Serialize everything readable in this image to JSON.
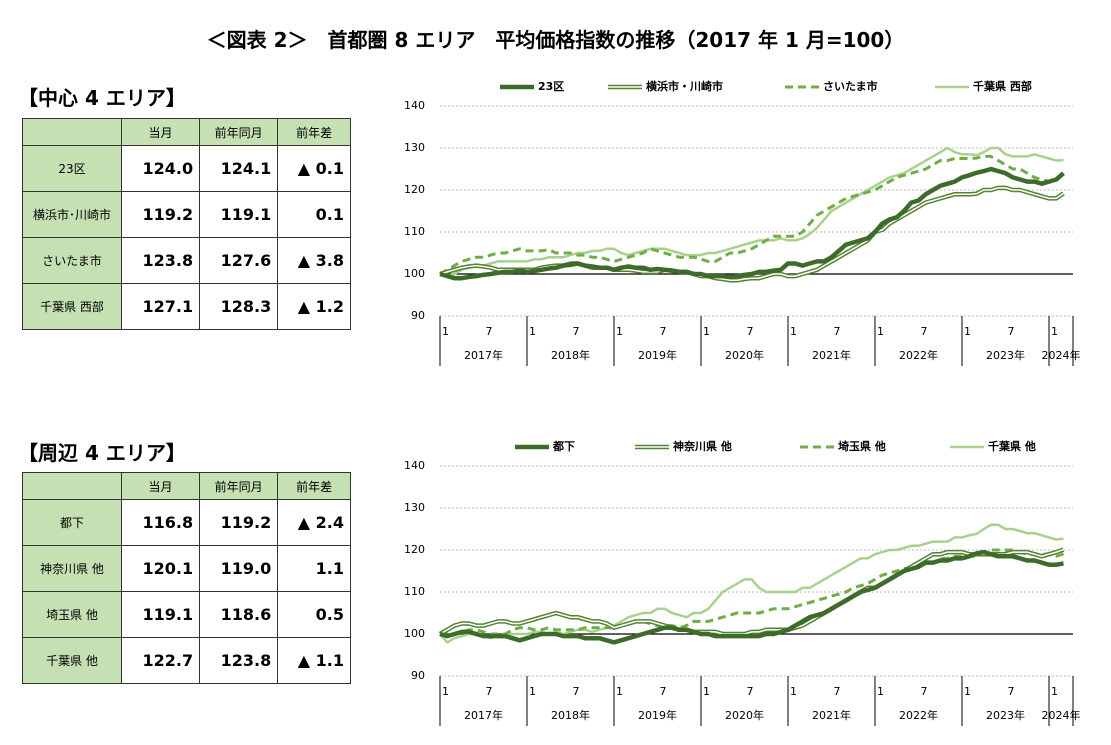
{
  "title": "＜図表 2＞　首都圏 8 エリア　平均価格指数の推移（2017 年 1 月=100）",
  "sections": [
    {
      "heading": "【中心 4 エリア】",
      "table": {
        "header": [
          "当月",
          "前年同月",
          "前年差"
        ],
        "rows": [
          [
            "23区",
            "124.0",
            "124.1",
            "▲ 0.1"
          ],
          [
            "横浜市･川崎市",
            "119.2",
            "119.1",
            "0.1"
          ],
          [
            "さいたま市",
            "123.8",
            "127.6",
            "▲ 3.8"
          ],
          [
            "千葉県 西部",
            "127.1",
            "128.3",
            "▲ 1.2"
          ]
        ]
      }
    },
    {
      "heading": "【周辺 4 エリア】",
      "table": {
        "header": [
          "当月",
          "前年同月",
          "前年差"
        ],
        "rows": [
          [
            "都下",
            "116.8",
            "119.2",
            "▲ 2.4"
          ],
          [
            "神奈川県 他",
            "120.1",
            "119.0",
            "1.1"
          ],
          [
            "埼玉県 他",
            "119.1",
            "118.6",
            "0.5"
          ],
          [
            "千葉県 他",
            "122.7",
            "123.8",
            "▲ 1.1"
          ]
        ]
      }
    }
  ],
  "chart_data": [
    {
      "type": "line",
      "ylim": [
        90,
        140
      ],
      "yticks": [
        90,
        100,
        110,
        120,
        130,
        140
      ],
      "grid": true,
      "reference_line": 100,
      "categories": [
        "1",
        null,
        null,
        null,
        null,
        null,
        "7",
        null,
        null,
        null,
        null,
        null,
        "1",
        null,
        null,
        null,
        null,
        null,
        "7",
        null,
        null,
        null,
        null,
        null,
        "1",
        null,
        null,
        null,
        null,
        null,
        "7",
        null,
        null,
        null,
        null,
        null,
        "1",
        null,
        null,
        null,
        null,
        null,
        "7",
        null,
        null,
        null,
        null,
        null,
        "1",
        null,
        null,
        null,
        null,
        null,
        "7",
        null,
        null,
        null,
        null,
        null,
        "1",
        null,
        null,
        null,
        null,
        null,
        "7",
        null,
        null,
        null,
        null,
        null,
        "1",
        null,
        null,
        null,
        null,
        null,
        "7",
        null,
        null,
        null,
        null,
        null,
        "1",
        null,
        null
      ],
      "year_labels": [
        "2017年",
        "2018年",
        "2019年",
        "2020年",
        "2021年",
        "2022年",
        "2023年",
        "2024年"
      ],
      "series": [
        {
          "name": "23区",
          "color": "#3e6b2a",
          "line_style": "solid",
          "width": 4.5,
          "values": [
            100,
            99.5,
            99,
            99,
            99.3,
            99.5,
            99.8,
            100,
            100.3,
            100.5,
            100.5,
            100.8,
            100.5,
            100.7,
            101,
            101.3,
            101.5,
            102,
            102.2,
            102.5,
            102,
            101.8,
            101.5,
            101.5,
            101,
            101.5,
            101.8,
            101.5,
            101.5,
            101,
            101.2,
            101,
            100.8,
            100.5,
            100.5,
            100,
            100,
            99.5,
            99.5,
            99.5,
            99.3,
            99.5,
            99.8,
            100,
            100.5,
            100.5,
            100.8,
            101,
            102.5,
            102.5,
            102,
            102.5,
            103,
            103,
            104,
            105.5,
            107,
            107.5,
            108,
            108.5,
            110,
            112,
            113,
            113.5,
            115,
            117,
            117.5,
            119,
            120,
            121,
            121.5,
            122,
            123,
            123.5,
            124.1,
            124.5,
            125,
            124.5,
            124,
            123,
            122.5,
            122,
            122,
            121.5,
            122,
            122.5,
            124
          ]
        },
        {
          "name": "横浜市・川崎市",
          "color": "#548235",
          "line_style": "double",
          "width": 4.5,
          "values": [
            100,
            100.5,
            101,
            101.5,
            101.8,
            102,
            101.8,
            101.5,
            101,
            101,
            101,
            101,
            101,
            101,
            101.5,
            101.8,
            102,
            102,
            102.5,
            102.5,
            102,
            101.5,
            101.5,
            101.5,
            101,
            101,
            101,
            100.8,
            100.5,
            100.5,
            100.5,
            101,
            100.8,
            100.5,
            100.5,
            100,
            99.5,
            99.5,
            99,
            98.8,
            98.5,
            98.5,
            98.8,
            99,
            99,
            99.5,
            100,
            100,
            99.5,
            99.5,
            100,
            100.5,
            101,
            102,
            103,
            104,
            105,
            106,
            107,
            108,
            110,
            110.5,
            112,
            113,
            114,
            115,
            116,
            117,
            117.5,
            118,
            118.5,
            119,
            119,
            119,
            119.1,
            120,
            120,
            120.5,
            120.5,
            120,
            120,
            119.5,
            119,
            118.5,
            118,
            118,
            119.2
          ]
        },
        {
          "name": "さいたま市",
          "color": "#70ad47",
          "line_style": "dashed",
          "width": 3,
          "values": [
            100,
            101,
            102,
            103,
            103.5,
            104,
            104,
            104.5,
            105,
            105,
            105.5,
            106,
            105.5,
            105.5,
            105.5,
            105.8,
            105,
            105,
            105,
            104.5,
            104.5,
            104,
            104,
            103.5,
            103,
            103.5,
            104,
            104.5,
            105,
            106,
            105.5,
            105,
            104.5,
            104,
            104,
            104,
            103.5,
            103,
            103,
            104,
            105,
            105,
            105.5,
            106,
            107,
            108,
            109,
            109,
            109,
            109,
            110,
            112,
            114,
            115,
            116,
            117,
            118,
            118.5,
            119,
            119.5,
            120,
            121,
            122,
            123,
            123.5,
            124,
            124.5,
            125,
            126,
            127,
            127,
            127.5,
            127.5,
            127.5,
            127.6,
            128,
            128,
            127,
            126,
            125,
            125,
            124,
            123,
            122.5,
            122,
            122.5,
            123.8
          ]
        },
        {
          "name": "千葉県 西部",
          "color": "#a9d18e",
          "line_style": "solid",
          "width": 2.5,
          "values": [
            100,
            99.5,
            100,
            101,
            101.5,
            102,
            102,
            102.5,
            103,
            103,
            103,
            103,
            103,
            103.5,
            103.5,
            104,
            104,
            104,
            104.5,
            105,
            105,
            105.5,
            105.5,
            106,
            106,
            105,
            104.5,
            105,
            105.5,
            106,
            106,
            106,
            105.5,
            105,
            104.5,
            104.5,
            104.5,
            105,
            105,
            105.5,
            106,
            106.5,
            107,
            107.5,
            108,
            108,
            108,
            108.5,
            108,
            108,
            108.5,
            109.5,
            111,
            113,
            115,
            116,
            117,
            118,
            119,
            120,
            121,
            122,
            123,
            123.5,
            124,
            125,
            126,
            127,
            128,
            129,
            130,
            129,
            128.5,
            128.5,
            128.3,
            129,
            130,
            130,
            128.5,
            128,
            128,
            128,
            128.5,
            128,
            127.5,
            127,
            127.1
          ]
        }
      ]
    },
    {
      "type": "line",
      "ylim": [
        90,
        140
      ],
      "yticks": [
        90,
        100,
        110,
        120,
        130,
        140
      ],
      "grid": true,
      "reference_line": 100,
      "categories": [
        "1",
        null,
        null,
        null,
        null,
        null,
        "7",
        null,
        null,
        null,
        null,
        null,
        "1",
        null,
        null,
        null,
        null,
        null,
        "7",
        null,
        null,
        null,
        null,
        null,
        "1",
        null,
        null,
        null,
        null,
        null,
        "7",
        null,
        null,
        null,
        null,
        null,
        "1",
        null,
        null,
        null,
        null,
        null,
        "7",
        null,
        null,
        null,
        null,
        null,
        "1",
        null,
        null,
        null,
        null,
        null,
        "7",
        null,
        null,
        null,
        null,
        null,
        "1",
        null,
        null,
        null,
        null,
        null,
        "7",
        null,
        null,
        null,
        null,
        null,
        "1",
        null,
        null,
        null,
        null,
        null,
        "7",
        null,
        null,
        null,
        null,
        null,
        "1",
        null,
        null
      ],
      "year_labels": [
        "2017年",
        "2018年",
        "2019年",
        "2020年",
        "2021年",
        "2022年",
        "2023年",
        "2024年"
      ],
      "series": [
        {
          "name": "都下",
          "color": "#3e6b2a",
          "line_style": "solid",
          "width": 4.5,
          "values": [
            100,
            99.5,
            100,
            100.5,
            100.5,
            100,
            99.5,
            99.5,
            99.5,
            99.5,
            99,
            98.5,
            99,
            99.5,
            100,
            100,
            100,
            99.5,
            99.5,
            99.5,
            99,
            99,
            99,
            98.5,
            98,
            98.5,
            99,
            99.5,
            100,
            100.5,
            101,
            101.5,
            101.5,
            101,
            101,
            100.5,
            100,
            100,
            99.5,
            99.5,
            99.5,
            99.5,
            99.5,
            99.5,
            99.5,
            100,
            100,
            100.5,
            101,
            102,
            103,
            104,
            104.5,
            105,
            106,
            107,
            108,
            109,
            110,
            110.5,
            111,
            112,
            113,
            114,
            115,
            115.5,
            116,
            117,
            117,
            117.5,
            117.5,
            118,
            118,
            118.5,
            119.2,
            119.5,
            119,
            118.5,
            118.5,
            118.5,
            118,
            117.5,
            117.5,
            117,
            116.5,
            116.5,
            116.8
          ]
        },
        {
          "name": "神奈川県 他",
          "color": "#548235",
          "line_style": "double",
          "width": 4.5,
          "values": [
            100,
            101,
            102,
            102.5,
            102.5,
            102,
            102,
            102.5,
            103,
            103,
            102.5,
            102.5,
            103,
            103.5,
            104,
            104.5,
            105,
            104.5,
            104,
            104,
            103.5,
            103,
            103,
            102.5,
            101.5,
            102,
            102.5,
            103,
            103,
            103,
            102.5,
            102,
            101.5,
            101,
            101,
            100.5,
            100.5,
            100.5,
            100.5,
            100,
            100,
            100,
            100,
            100.5,
            100.5,
            101,
            101,
            101,
            101,
            101.5,
            102,
            103,
            104,
            105,
            106,
            107,
            108,
            109,
            110,
            111,
            111,
            112,
            113,
            114,
            115,
            116,
            117,
            118,
            119,
            119,
            119.5,
            119.5,
            119.5,
            119,
            119,
            119,
            119,
            119,
            119,
            119.5,
            119.5,
            119.5,
            119,
            118.5,
            119,
            119.5,
            120.1
          ]
        },
        {
          "name": "埼玉県 他",
          "color": "#70ad47",
          "line_style": "dashed",
          "width": 3,
          "values": [
            100,
            100.5,
            100,
            100.5,
            101,
            101,
            100.5,
            100,
            100,
            100,
            101,
            101.5,
            101.5,
            101,
            101,
            101.5,
            101,
            101,
            101,
            101,
            101.5,
            101.5,
            101.5,
            101.5,
            101.5,
            102,
            102.5,
            103,
            103,
            102.5,
            102,
            102,
            102,
            101.5,
            102,
            103,
            103,
            103,
            103.5,
            104,
            104.5,
            105,
            105,
            105,
            105,
            105.5,
            106,
            106,
            106,
            106.5,
            107,
            107.5,
            108,
            108.5,
            109,
            109.5,
            110,
            111,
            111.5,
            112,
            113,
            114,
            114.5,
            115,
            115.5,
            116,
            116.5,
            117,
            117,
            118,
            118,
            118.5,
            118.5,
            118.5,
            118.6,
            119.5,
            120,
            120,
            120,
            120,
            119.5,
            119,
            119,
            119,
            119,
            118.5,
            119.1
          ]
        },
        {
          "name": "千葉県 他",
          "color": "#a9d18e",
          "line_style": "solid",
          "width": 2.5,
          "values": [
            100,
            98,
            99,
            99.5,
            100,
            100,
            99.5,
            99,
            99.5,
            100,
            100,
            100,
            100,
            100.5,
            100.5,
            100,
            100.5,
            100,
            100.5,
            101,
            101,
            100.5,
            101,
            101.5,
            102,
            103,
            104,
            104.5,
            105,
            105,
            106,
            106,
            105,
            104.5,
            104,
            105,
            105,
            106,
            108,
            110,
            111,
            112,
            113,
            113,
            111,
            110,
            110,
            110,
            110,
            110,
            111,
            111,
            112,
            113,
            114,
            115,
            116,
            117,
            118,
            118,
            119,
            119.5,
            120,
            120,
            120.5,
            121,
            121,
            121.5,
            122,
            122,
            122,
            123,
            123,
            123.5,
            123.8,
            125,
            126,
            126,
            125,
            125,
            124.5,
            124,
            124,
            123.5,
            123,
            122.5,
            122.7
          ]
        }
      ]
    }
  ]
}
